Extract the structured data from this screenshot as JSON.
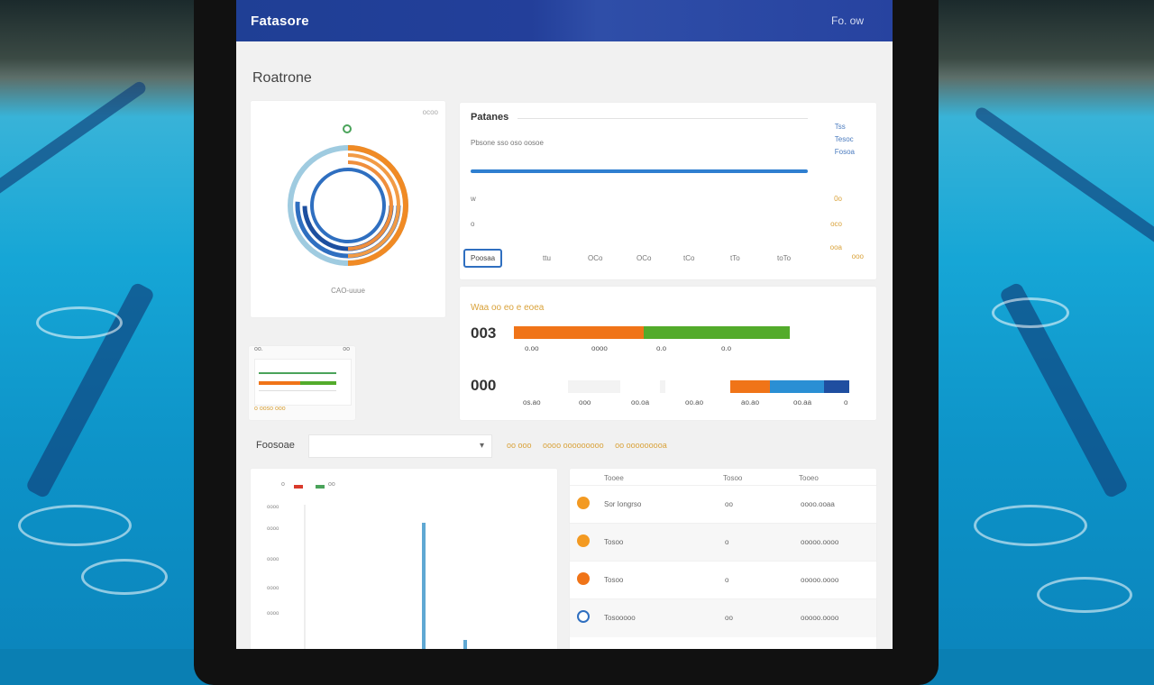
{
  "app": {
    "title": "Fatasore",
    "top_right": "Fo. ow"
  },
  "page": {
    "title": "Roatrone"
  },
  "donut_card": {
    "corner": "ocoo",
    "caption": "CAO-uuue"
  },
  "progress_card": {
    "title": "Patanes",
    "subtitle": "Pbsone sso oso oosoe",
    "axis_labels": [
      "w",
      "o"
    ],
    "legend": [
      "Tss",
      "Tesoc",
      "Fosoa"
    ],
    "right_values": [
      "0o",
      "oco",
      "ooa"
    ],
    "right_value2": "ooo",
    "tabs": [
      "Poosaa",
      "ttu",
      "OCo",
      "OCo",
      "tCo",
      "tTo",
      "toTo"
    ],
    "progress": 0.87
  },
  "bars_card": {
    "title": "Waa oo eo e eoea",
    "rows": [
      {
        "number": "003",
        "labels": [
          "o.oo",
          "oooo",
          "o.o",
          "o.o"
        ]
      },
      {
        "number": "000",
        "labels": [
          "os.ao",
          "ooo",
          "oo.oa",
          "oo.ao",
          "ao.ao",
          "oo.aa",
          "o"
        ]
      }
    ],
    "colors": {
      "orange": "#f07418",
      "green": "#53ab2b",
      "blue": "#2a8fd4",
      "navy": "#1f4ea0"
    }
  },
  "thumb": {
    "title": "oo.",
    "right": "oo",
    "footer": "o ooso ooo"
  },
  "filter": {
    "label": "Foosoae",
    "selected": "",
    "links": [
      "oo ooo",
      "oooo ooooooooo",
      "oo ooooooooa"
    ]
  },
  "line_chart": {
    "legend": [
      "o",
      "oo"
    ],
    "yticks": [
      "oooo",
      "oooo",
      "oooo",
      "oooo",
      "oooo"
    ]
  },
  "table": {
    "headers": [
      "Tooee",
      "Tosoo",
      "Tooeo"
    ],
    "rows": [
      {
        "icon": "orange-badge-icon",
        "name": "Sor Iongrso",
        "val": "oo",
        "date": "oooo.ooaa"
      },
      {
        "icon": "orange-badge-icon",
        "name": "Tosoo",
        "val": "o",
        "date": "ooooo.oooo"
      },
      {
        "icon": "orange-badge-icon",
        "name": "Tosoo",
        "val": "o",
        "date": "ooooo.oooo"
      },
      {
        "icon": "blue-badge-icon",
        "name": "Tosooooo",
        "val": "oo",
        "date": "ooooo.oooo"
      }
    ]
  }
}
